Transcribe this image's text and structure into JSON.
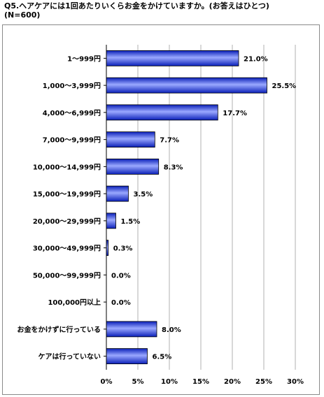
{
  "title": {
    "line1": "Q5.ヘアケアには1回あたりいくらお金をかけていますか。(お答えはひとつ)",
    "line2": "(N=600)"
  },
  "colors": {
    "bar_dark": "#0a1fb8",
    "bar_light": "#9aa8ff",
    "grid": "#b0b0b0",
    "axis": "#000000"
  },
  "chart_data": {
    "type": "bar",
    "orientation": "horizontal",
    "title": "Q5.ヘアケアには1回あたりいくらお金をかけていますか。(お答えはひとつ)",
    "subtitle": "(N=600)",
    "categories": [
      "1～999円",
      "1,000～3,999円",
      "4,000～6,999円",
      "7,000～9,999円",
      "10,000～14,999円",
      "15,000～19,999円",
      "20,000～29,999円",
      "30,000～49,999円",
      "50,000～99,999円",
      "100,000円以上",
      "お金をかけずに行っている",
      "ケアは行っていない"
    ],
    "values": [
      21.0,
      25.5,
      17.7,
      7.7,
      8.3,
      3.5,
      1.5,
      0.3,
      0.0,
      0.0,
      8.0,
      6.5
    ],
    "value_labels": [
      "21.0%",
      "25.5%",
      "17.7%",
      "7.7%",
      "8.3%",
      "3.5%",
      "1.5%",
      "0.3%",
      "0.0%",
      "0.0%",
      "8.0%",
      "6.5%"
    ],
    "xlim": [
      0,
      30
    ],
    "ticks": [
      0,
      5,
      10,
      15,
      20,
      25,
      30
    ],
    "tick_labels": [
      "0%",
      "5%",
      "10%",
      "15%",
      "20%",
      "25%",
      "30%"
    ],
    "grid": true,
    "legend": false
  }
}
